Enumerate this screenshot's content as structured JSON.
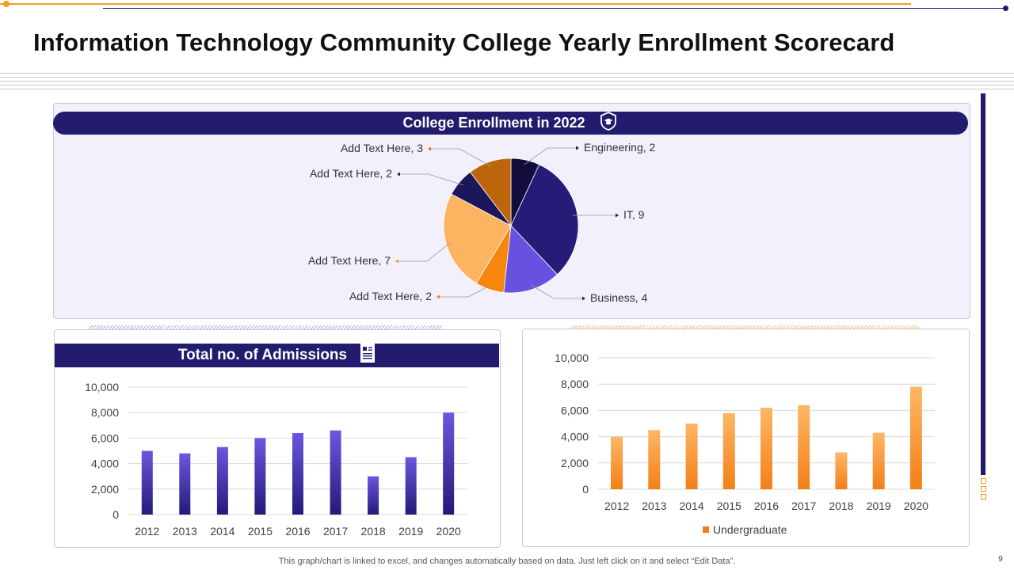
{
  "slide": {
    "title": "Information Technology Community College Yearly Enrollment Scorecard",
    "footer_note": "This graph/chart is linked to excel,  and changes automatically based on data. Just left click on it and select “Edit Data”.",
    "page_number": "9"
  },
  "panels": {
    "pie_title": "College Enrollment in 2022",
    "admissions_title": "Total no. of Admissions"
  },
  "icons": {
    "pie_banner_icon": "graduation-badge-icon",
    "admissions_banner_icon": "document-icon"
  },
  "colors": {
    "navy": "#231b6e",
    "violet_bar_top": "#6a57e0",
    "violet_bar_bottom": "#241a78",
    "orange_bar_top": "#fdb766",
    "orange_bar_bottom": "#f47f16",
    "accent_orange": "#f39c1e"
  },
  "chart_data": [
    {
      "type": "pie",
      "title": "College Enrollment in 2022",
      "slices": [
        {
          "label": "Engineering",
          "value": 2,
          "display": "Engineering, 2",
          "color": "#120d3d"
        },
        {
          "label": "IT",
          "value": 9,
          "display": "IT, 9",
          "color": "#271b78"
        },
        {
          "label": "Business",
          "value": 4,
          "display": "Business, 4",
          "color": "#6752e0"
        },
        {
          "label": "Add Text Here",
          "value": 2,
          "display": "Add Text Here, 2",
          "color": "#f7860f"
        },
        {
          "label": "Add Text Here",
          "value": 7,
          "display": "Add Text Here, 7",
          "color": "#fdb461"
        },
        {
          "label": "Add Text Here",
          "value": 2,
          "display": "Add Text Here, 2",
          "color": "#1c165c"
        },
        {
          "label": "Add Text Here",
          "value": 3,
          "display": "Add Text Here, 3",
          "color": "#bd650d"
        }
      ]
    },
    {
      "type": "bar",
      "title": "Total no. of Admissions",
      "categories": [
        "2012",
        "2013",
        "2014",
        "2015",
        "2016",
        "2017",
        "2018",
        "2019",
        "2020"
      ],
      "values": [
        5000,
        4800,
        5300,
        6000,
        6400,
        6600,
        3000,
        4500,
        8000
      ],
      "ylim": [
        0,
        10000
      ],
      "yticks": [
        "0",
        "2,000",
        "4,000",
        "6,000",
        "8,000",
        "10,000"
      ],
      "grid": true
    },
    {
      "type": "bar",
      "title": "",
      "categories": [
        "2012",
        "2013",
        "2014",
        "2015",
        "2016",
        "2017",
        "2018",
        "2019",
        "2020"
      ],
      "series": [
        {
          "name": "Undergraduate",
          "values": [
            4000,
            4500,
            5000,
            5800,
            6200,
            6400,
            2800,
            4300,
            7800
          ]
        }
      ],
      "ylim": [
        0,
        10000
      ],
      "yticks": [
        "0",
        "2,000",
        "4,000",
        "6,000",
        "8,000",
        "10,000"
      ],
      "legend": "bottom",
      "grid": true
    }
  ]
}
